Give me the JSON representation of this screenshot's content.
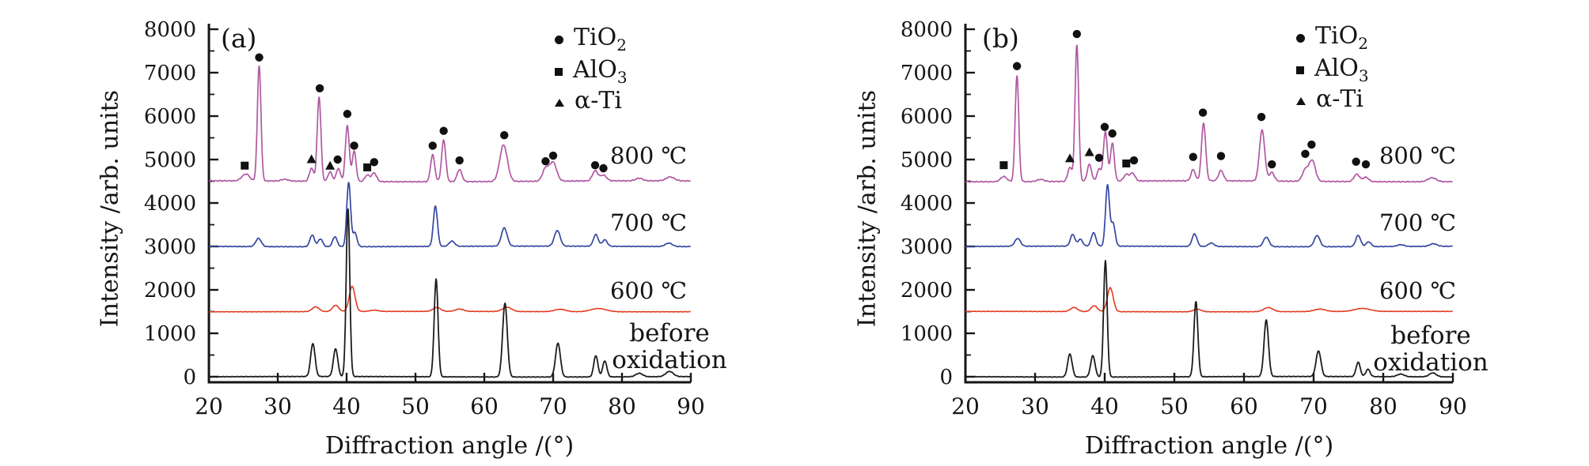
{
  "figure": {
    "background": "#ffffff",
    "marker_color": "#111111",
    "axis_color": "#151515"
  },
  "chart_data": [
    {
      "type": "line",
      "panel": "(a)",
      "xlabel": "Diffraction angle /(°)",
      "ylabel": "Intensity /arb. units",
      "xlim": [
        20,
        90
      ],
      "ylim": [
        0,
        8000
      ],
      "x_tick_step": 10,
      "y_tick_step": 1000,
      "y_minor_step": 500,
      "legend_position": "top-right-inside",
      "grid": false,
      "legend": [
        {
          "marker": "circle",
          "base": "TiO",
          "sub": "2"
        },
        {
          "marker": "square",
          "base": "AlO",
          "sub": "3"
        },
        {
          "marker": "triangle",
          "base": "α-Ti",
          "sub": ""
        }
      ],
      "series": [
        {
          "name": "before oxidation",
          "label_lines": [
            "before",
            "oxidation"
          ],
          "color": "#1c1c1c",
          "baseline": 0,
          "noise": 12,
          "width": 1.8,
          "peaks": [
            [
              35.1,
              760,
              0.32
            ],
            [
              38.4,
              640,
              0.32
            ],
            [
              40.2,
              3860,
              0.26
            ],
            [
              53.0,
              2250,
              0.28
            ],
            [
              63.0,
              1700,
              0.34
            ],
            [
              70.7,
              780,
              0.35
            ],
            [
              76.2,
              490,
              0.3
            ],
            [
              77.5,
              370,
              0.3
            ],
            [
              82.5,
              80,
              0.5
            ],
            [
              86.9,
              120,
              0.55
            ]
          ]
        },
        {
          "name": "600 C",
          "label": "600 ℃",
          "color": "#e23a1e",
          "baseline": 1500,
          "noise": 9,
          "width": 1.6,
          "peaks": [
            [
              35.5,
              110,
              0.5
            ],
            [
              38.4,
              145,
              0.45
            ],
            [
              40.8,
              580,
              0.42
            ],
            [
              44.0,
              30,
              0.6
            ],
            [
              53.1,
              90,
              0.55
            ],
            [
              56.4,
              55,
              0.6
            ],
            [
              63.3,
              100,
              0.65
            ],
            [
              71.0,
              55,
              0.8
            ],
            [
              76.6,
              75,
              1.1
            ]
          ]
        },
        {
          "name": "700 C",
          "label": "700 ℃",
          "color": "#3547a0",
          "baseline": 3000,
          "noise": 14,
          "width": 1.7,
          "peaks": [
            [
              27.2,
              190,
              0.4
            ],
            [
              35.0,
              270,
              0.33
            ],
            [
              36.2,
              180,
              0.33
            ],
            [
              38.3,
              230,
              0.33
            ],
            [
              40.3,
              1480,
              0.28
            ],
            [
              41.2,
              320,
              0.3
            ],
            [
              52.9,
              930,
              0.3
            ],
            [
              55.3,
              120,
              0.4
            ],
            [
              62.9,
              420,
              0.42
            ],
            [
              70.6,
              360,
              0.42
            ],
            [
              76.2,
              270,
              0.35
            ],
            [
              77.5,
              150,
              0.35
            ],
            [
              86.8,
              80,
              0.5
            ]
          ]
        },
        {
          "name": "800 C",
          "label": "800 ℃",
          "color": "#b158a3",
          "baseline": 4500,
          "noise": 22,
          "width": 1.7,
          "peaks": [
            [
              25.0,
              90,
              0.45
            ],
            [
              25.6,
              110,
              0.4
            ],
            [
              27.3,
              2660,
              0.26
            ],
            [
              31.0,
              40,
              0.5
            ],
            [
              34.9,
              300,
              0.3
            ],
            [
              36.0,
              1940,
              0.27
            ],
            [
              37.6,
              220,
              0.3
            ],
            [
              38.8,
              300,
              0.3
            ],
            [
              40.1,
              1290,
              0.28
            ],
            [
              41.1,
              700,
              0.28
            ],
            [
              43.0,
              150,
              0.35
            ],
            [
              44.0,
              200,
              0.35
            ],
            [
              52.5,
              620,
              0.3
            ],
            [
              54.1,
              960,
              0.3
            ],
            [
              56.4,
              280,
              0.35
            ],
            [
              62.8,
              840,
              0.55
            ],
            [
              68.9,
              290,
              0.45
            ],
            [
              70.0,
              430,
              0.5
            ],
            [
              76.1,
              230,
              0.4
            ],
            [
              77.3,
              130,
              0.45
            ],
            [
              82.5,
              60,
              0.5
            ],
            [
              87.0,
              90,
              0.6
            ]
          ]
        }
      ],
      "markers": [
        [
          "square",
          25.2,
          4860
        ],
        [
          "circle",
          27.3,
          7350
        ],
        [
          "triangle",
          34.9,
          5010
        ],
        [
          "circle",
          36.1,
          6640
        ],
        [
          "triangle",
          37.6,
          4860
        ],
        [
          "circle",
          38.7,
          5000
        ],
        [
          "circle",
          40.1,
          6050
        ],
        [
          "circle",
          41.1,
          5320
        ],
        [
          "square",
          43.0,
          4820
        ],
        [
          "circle",
          44.0,
          4940
        ],
        [
          "circle",
          52.5,
          5320
        ],
        [
          "circle",
          54.1,
          5660
        ],
        [
          "circle",
          56.4,
          4980
        ],
        [
          "circle",
          62.9,
          5560
        ],
        [
          "circle",
          68.9,
          4960
        ],
        [
          "circle",
          70.0,
          5090
        ],
        [
          "circle",
          76.1,
          4870
        ],
        [
          "circle",
          77.3,
          4800
        ]
      ]
    },
    {
      "type": "line",
      "panel": "(b)",
      "xlabel": "Diffraction angle /(°)",
      "ylabel": "Intensity /arb. units",
      "xlim": [
        20,
        90
      ],
      "ylim": [
        0,
        8000
      ],
      "x_tick_step": 10,
      "y_tick_step": 1000,
      "y_minor_step": 500,
      "legend_position": "top-right-inside",
      "grid": false,
      "legend": [
        {
          "marker": "circle",
          "base": "TiO",
          "sub": "2"
        },
        {
          "marker": "square",
          "base": "AlO",
          "sub": "3"
        },
        {
          "marker": "triangle",
          "base": "α-Ti",
          "sub": ""
        }
      ],
      "series": [
        {
          "name": "before oxidation",
          "label_lines": [
            "before",
            "oxidation"
          ],
          "color": "#1c1c1c",
          "baseline": 0,
          "noise": 12,
          "width": 1.8,
          "peaks": [
            [
              35.0,
              530,
              0.32
            ],
            [
              38.3,
              490,
              0.32
            ],
            [
              40.1,
              2680,
              0.26
            ],
            [
              53.1,
              1730,
              0.28
            ],
            [
              63.2,
              1300,
              0.32
            ],
            [
              70.7,
              590,
              0.35
            ],
            [
              76.4,
              330,
              0.3
            ],
            [
              77.8,
              170,
              0.3
            ],
            [
              82.5,
              60,
              0.5
            ],
            [
              87.1,
              90,
              0.5
            ]
          ]
        },
        {
          "name": "600 C",
          "label": "600 ℃",
          "color": "#e23a1e",
          "baseline": 1500,
          "noise": 9,
          "width": 1.6,
          "peaks": [
            [
              35.6,
              95,
              0.5
            ],
            [
              38.5,
              135,
              0.45
            ],
            [
              40.8,
              550,
              0.42
            ],
            [
              53.3,
              60,
              0.55
            ],
            [
              63.5,
              95,
              0.65
            ],
            [
              70.9,
              55,
              0.8
            ],
            [
              77.0,
              70,
              1.1
            ]
          ]
        },
        {
          "name": "700 C",
          "label": "700 ℃",
          "color": "#3547a0",
          "baseline": 3000,
          "noise": 14,
          "width": 1.7,
          "peaks": [
            [
              27.5,
              180,
              0.4
            ],
            [
              35.4,
              270,
              0.33
            ],
            [
              36.5,
              160,
              0.33
            ],
            [
              38.4,
              310,
              0.33
            ],
            [
              40.4,
              1400,
              0.28
            ],
            [
              41.2,
              520,
              0.3
            ],
            [
              52.9,
              290,
              0.35
            ],
            [
              55.3,
              80,
              0.4
            ],
            [
              63.2,
              220,
              0.4
            ],
            [
              70.5,
              260,
              0.4
            ],
            [
              76.4,
              260,
              0.35
            ],
            [
              77.9,
              110,
              0.35
            ],
            [
              82.5,
              40,
              0.5
            ],
            [
              87.2,
              60,
              0.5
            ]
          ]
        },
        {
          "name": "800 C",
          "label": "800 ℃",
          "color": "#b158a3",
          "baseline": 4500,
          "noise": 22,
          "width": 1.7,
          "peaks": [
            [
              25.5,
              120,
              0.45
            ],
            [
              27.4,
              2450,
              0.26
            ],
            [
              30.8,
              50,
              0.5
            ],
            [
              35.0,
              320,
              0.3
            ],
            [
              36.0,
              3140,
              0.26
            ],
            [
              37.8,
              390,
              0.3
            ],
            [
              39.2,
              280,
              0.3
            ],
            [
              40.1,
              1140,
              0.28
            ],
            [
              41.1,
              870,
              0.28
            ],
            [
              43.1,
              150,
              0.35
            ],
            [
              44.0,
              180,
              0.35
            ],
            [
              52.7,
              260,
              0.3
            ],
            [
              54.2,
              1330,
              0.3
            ],
            [
              56.7,
              240,
              0.35
            ],
            [
              62.6,
              1170,
              0.38
            ],
            [
              64.0,
              200,
              0.35
            ],
            [
              68.8,
              260,
              0.42
            ],
            [
              69.8,
              480,
              0.45
            ],
            [
              76.2,
              170,
              0.4
            ],
            [
              77.5,
              100,
              0.4
            ],
            [
              87.0,
              90,
              0.6
            ]
          ]
        }
      ],
      "markers": [
        [
          "square",
          25.5,
          4870
        ],
        [
          "circle",
          27.4,
          7150
        ],
        [
          "triangle",
          35.0,
          5030
        ],
        [
          "circle",
          36.0,
          7890
        ],
        [
          "triangle",
          37.8,
          5170
        ],
        [
          "circle",
          39.2,
          5040
        ],
        [
          "circle",
          40.0,
          5750
        ],
        [
          "circle",
          41.1,
          5600
        ],
        [
          "square",
          43.1,
          4910
        ],
        [
          "circle",
          44.2,
          4980
        ],
        [
          "circle",
          52.7,
          5060
        ],
        [
          "circle",
          54.1,
          6080
        ],
        [
          "circle",
          56.7,
          5080
        ],
        [
          "circle",
          62.5,
          5980
        ],
        [
          "circle",
          64.0,
          4890
        ],
        [
          "circle",
          68.8,
          5130
        ],
        [
          "circle",
          69.7,
          5345
        ],
        [
          "circle",
          76.1,
          4950
        ],
        [
          "circle",
          77.5,
          4890
        ]
      ]
    }
  ]
}
